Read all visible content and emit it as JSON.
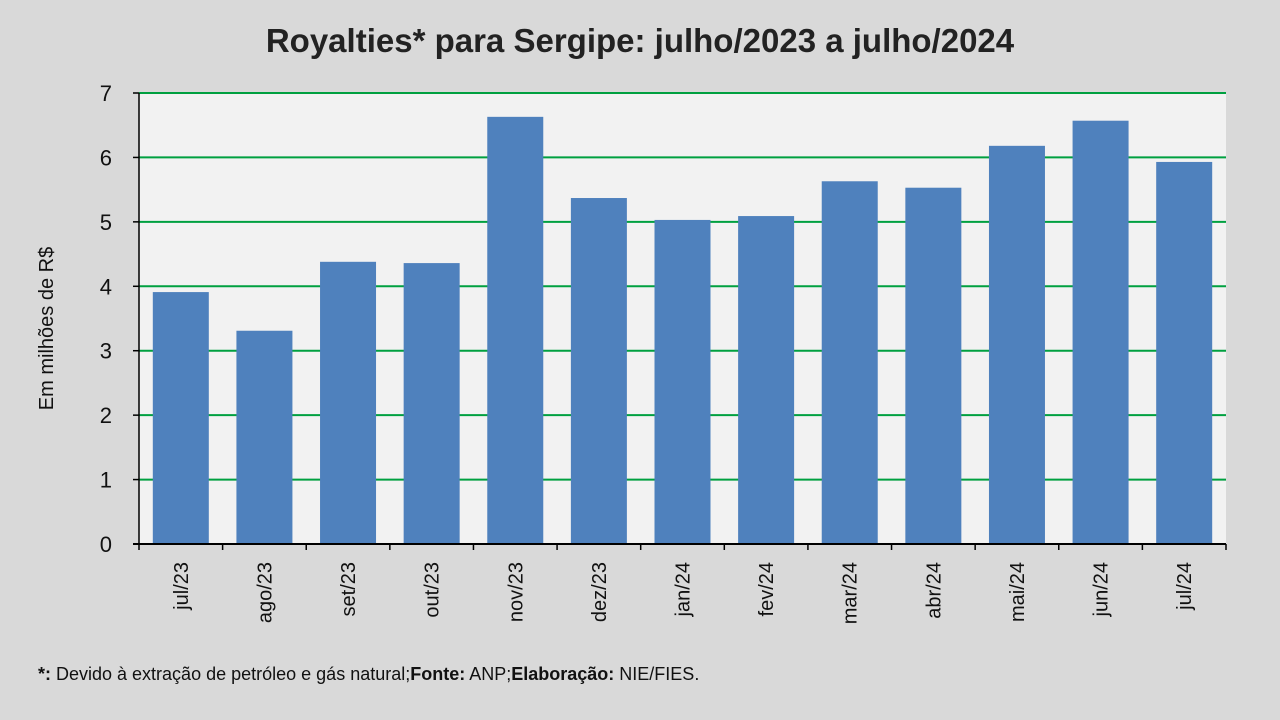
{
  "chart_data": {
    "type": "bar",
    "title": "Royalties* para Sergipe: julho/2023 a julho/2024",
    "xlabel": "",
    "ylabel": "Em milhões de R$",
    "ylim": [
      0,
      7
    ],
    "yticks": [
      0,
      1,
      2,
      3,
      4,
      5,
      6,
      7
    ],
    "grid": true,
    "categories": [
      "jul/23",
      "ago/23",
      "set/23",
      "out/23",
      "nov/23",
      "dez/23",
      "jan/24",
      "fev/24",
      "mar/24",
      "abr/24",
      "mai/24",
      "jun/24",
      "jul/24"
    ],
    "values": [
      3.91,
      3.31,
      4.38,
      4.36,
      6.63,
      5.37,
      5.03,
      5.09,
      5.63,
      5.53,
      6.18,
      6.57,
      5.93
    ],
    "colors": {
      "bar": "#4f81bd",
      "grid": "#00a040",
      "plot_bg": "#f2f2f2",
      "page_bg": "#d9d9d9"
    }
  },
  "footnote": {
    "star_label": "*:",
    "star_text": " Devido à extração de petróleo e gás natural;",
    "source_label": "Fonte:",
    "source_text": " ANP;",
    "credit_label": "Elaboração:",
    "credit_text": " NIE/FIES."
  }
}
